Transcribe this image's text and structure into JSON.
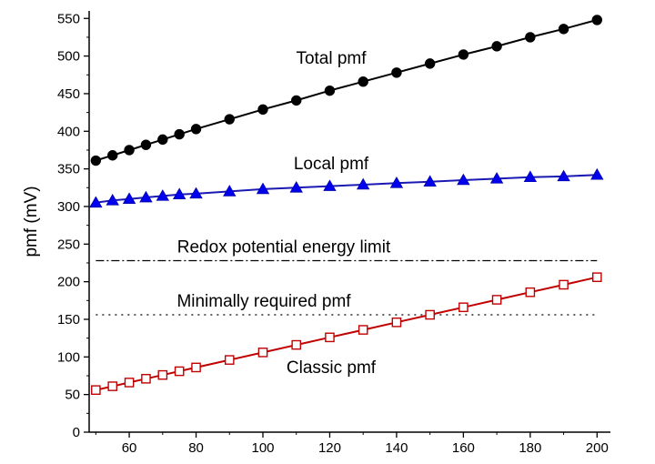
{
  "chart_data": {
    "type": "line",
    "title": "",
    "xlabel": "",
    "ylabel": "pmf (mV)",
    "xlim": [
      48,
      204
    ],
    "ylim": [
      0,
      560
    ],
    "xticks": [
      60,
      80,
      100,
      120,
      140,
      160,
      180,
      200
    ],
    "yticks": [
      0,
      50,
      100,
      150,
      200,
      250,
      300,
      350,
      400,
      450,
      500,
      550
    ],
    "grid": false,
    "series": [
      {
        "name": "Total pmf",
        "color": "#000000",
        "marker": "filled-circle",
        "x": [
          50,
          55,
          60,
          65,
          70,
          75,
          80,
          90,
          100,
          110,
          120,
          130,
          140,
          150,
          160,
          170,
          180,
          190,
          200
        ],
        "y": [
          361,
          368,
          375,
          382,
          389,
          396,
          403,
          416,
          429,
          441,
          454,
          466,
          478,
          490,
          502,
          513,
          525,
          536,
          548
        ]
      },
      {
        "name": "Local pmf",
        "color": "#1a1ab3",
        "marker": "filled-triangle",
        "x": [
          50,
          55,
          60,
          65,
          70,
          75,
          80,
          90,
          100,
          110,
          120,
          130,
          140,
          150,
          160,
          170,
          180,
          190,
          200
        ],
        "y": [
          305,
          308,
          310,
          312,
          314,
          316,
          317,
          320,
          323,
          325,
          327,
          329,
          331,
          333,
          335,
          337,
          339,
          340,
          342
        ]
      },
      {
        "name": "Classic pmf",
        "color": "#c00000",
        "marker": "open-square",
        "x": [
          50,
          55,
          60,
          65,
          70,
          75,
          80,
          90,
          100,
          110,
          120,
          130,
          140,
          150,
          160,
          170,
          180,
          190,
          200
        ],
        "y": [
          56,
          61,
          66,
          71,
          76,
          81,
          86,
          96,
          106,
          116,
          126,
          136,
          146,
          156,
          166,
          176,
          186,
          196,
          206
        ]
      }
    ],
    "reference_lines": [
      {
        "name": "Redox potential energy limit",
        "y": 228,
        "x_range": [
          50,
          200
        ],
        "style": "dash-dot"
      },
      {
        "name": "Minimally required pmf",
        "y": 156,
        "x_range": [
          50,
          200
        ],
        "style": "dotted"
      }
    ]
  }
}
